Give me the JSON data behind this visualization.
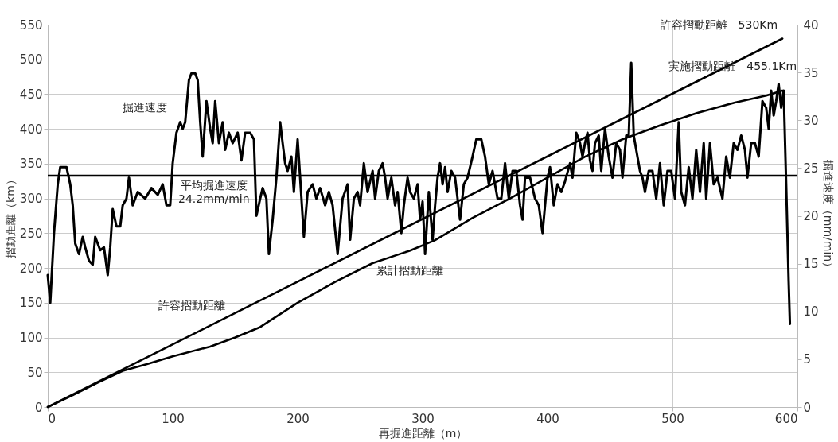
{
  "chart_data": {
    "type": "line",
    "xlabel": "再掘進距離（m）",
    "ylabel": "摺動距離（km）",
    "y2label": "掘進速度（mm/min）",
    "xlim": [
      0,
      600
    ],
    "xticks": [
      0,
      100,
      200,
      300,
      400,
      500,
      600
    ],
    "ylim": [
      0,
      550
    ],
    "yticks": [
      0,
      50,
      100,
      150,
      200,
      250,
      300,
      350,
      400,
      450,
      500,
      550
    ],
    "y2lim": [
      0,
      40
    ],
    "y2ticks": [
      0,
      5,
      10,
      15,
      20,
      25,
      30,
      35,
      40
    ],
    "grid": true,
    "line_style": "solid",
    "marker": "none",
    "series": [
      {
        "name": "掘進速度",
        "color": "#000000",
        "axis": "y2",
        "x": [
          0,
          2,
          5,
          8,
          10,
          15,
          18,
          20,
          22,
          25,
          28,
          30,
          33,
          36,
          38,
          42,
          45,
          48,
          50,
          52,
          55,
          58,
          60,
          63,
          65,
          68,
          72,
          78,
          83,
          88,
          92,
          95,
          98,
          100,
          103,
          106,
          108,
          110,
          113,
          115,
          118,
          120,
          122,
          124,
          127,
          130,
          132,
          134,
          137,
          140,
          142,
          145,
          148,
          152,
          155,
          158,
          162,
          165,
          167,
          170,
          172,
          175,
          177,
          180,
          183,
          186,
          188,
          190,
          192,
          195,
          197,
          200,
          202,
          205,
          208,
          212,
          215,
          218,
          222,
          225,
          228,
          232,
          236,
          240,
          242,
          245,
          248,
          250,
          253,
          256,
          260,
          262,
          265,
          268,
          270,
          272,
          275,
          278,
          280,
          283,
          285,
          288,
          290,
          293,
          296,
          298,
          300,
          302,
          305,
          308,
          310,
          312,
          314,
          316,
          318,
          320,
          323,
          326,
          328,
          330,
          333,
          336,
          340,
          343,
          347,
          350,
          353,
          356,
          360,
          363,
          366,
          369,
          372,
          375,
          378,
          380,
          382,
          386,
          390,
          393,
          396,
          400,
          402,
          405,
          408,
          411,
          414,
          418,
          420,
          423,
          426,
          428,
          430,
          432,
          434,
          436,
          438,
          441,
          443,
          446,
          449,
          452,
          455,
          458,
          460,
          463,
          465,
          467,
          469,
          471,
          474,
          476,
          478,
          481,
          484,
          487,
          490,
          493,
          496,
          499,
          502,
          505,
          507,
          510,
          513,
          516,
          519,
          522,
          525,
          527,
          530,
          533,
          536,
          540,
          543,
          546,
          549,
          552,
          555,
          558,
          560,
          563,
          566,
          569,
          572,
          575,
          577,
          579,
          581,
          583,
          585,
          587,
          589,
          591,
          593,
          594
        ],
        "values": [
          13.8,
          10.9,
          18.2,
          23.3,
          25.1,
          25.1,
          23.3,
          21.1,
          17.1,
          16.0,
          17.8,
          16.7,
          15.3,
          14.9,
          17.8,
          16.4,
          16.7,
          13.8,
          16.7,
          20.7,
          18.9,
          18.9,
          21.1,
          21.8,
          24.0,
          21.1,
          22.5,
          21.8,
          22.9,
          22.2,
          23.3,
          21.1,
          21.1,
          25.5,
          28.7,
          29.8,
          29.1,
          29.8,
          34.2,
          34.9,
          34.9,
          34.2,
          29.8,
          26.2,
          32.0,
          29.1,
          27.6,
          32.0,
          27.6,
          29.8,
          26.9,
          28.7,
          27.6,
          28.7,
          25.8,
          28.7,
          28.7,
          28.0,
          20.0,
          21.8,
          22.9,
          21.8,
          16.0,
          19.6,
          24.0,
          29.8,
          27.6,
          25.5,
          24.7,
          26.2,
          22.5,
          28.0,
          24.0,
          17.8,
          22.5,
          23.3,
          21.8,
          22.9,
          21.1,
          22.5,
          21.1,
          16.0,
          21.8,
          23.3,
          17.5,
          21.8,
          22.5,
          21.1,
          25.5,
          22.5,
          24.7,
          21.8,
          24.7,
          25.5,
          24.0,
          21.8,
          24.0,
          21.1,
          22.5,
          18.2,
          21.1,
          24.0,
          22.5,
          21.8,
          23.3,
          19.6,
          21.5,
          16.0,
          22.5,
          17.5,
          21.1,
          24.0,
          25.5,
          23.3,
          25.1,
          22.5,
          24.7,
          24.0,
          21.8,
          19.6,
          23.3,
          24.0,
          26.2,
          28.0,
          28.0,
          26.2,
          23.3,
          24.7,
          21.8,
          21.8,
          25.5,
          21.8,
          24.7,
          24.7,
          21.1,
          19.6,
          24.0,
          24.0,
          21.8,
          21.1,
          18.2,
          24.0,
          25.1,
          21.1,
          23.3,
          22.5,
          23.6,
          25.5,
          24.0,
          28.7,
          27.6,
          26.2,
          27.6,
          28.7,
          25.8,
          24.7,
          27.6,
          28.4,
          24.7,
          29.1,
          26.2,
          24.0,
          27.6,
          26.9,
          24.0,
          28.4,
          28.4,
          36.0,
          28.4,
          26.9,
          24.7,
          24.0,
          22.5,
          24.7,
          24.7,
          21.8,
          25.5,
          21.1,
          24.7,
          24.7,
          21.8,
          29.8,
          22.5,
          21.1,
          25.1,
          21.8,
          26.9,
          22.5,
          27.6,
          21.8,
          27.6,
          23.3,
          24.0,
          21.8,
          26.2,
          24.0,
          27.6,
          26.9,
          28.4,
          26.9,
          24.0,
          27.6,
          27.6,
          26.2,
          32.0,
          31.3,
          29.1,
          33.1,
          30.5,
          32.0,
          33.8,
          31.3,
          33.1,
          23.3,
          13.1,
          8.7
        ]
      },
      {
        "name": "許容摺動距離",
        "color": "#000000",
        "x": [
          0,
          588
        ],
        "values": [
          0,
          530
        ]
      },
      {
        "name": "累計摺動距離",
        "color": "#000000",
        "x": [
          0,
          20,
          40,
          60,
          80,
          100,
          130,
          150,
          170,
          200,
          230,
          260,
          290,
          310,
          340,
          370,
          400,
          430,
          460,
          490,
          520,
          550,
          575,
          588
        ],
        "values": [
          0,
          17,
          35,
          52,
          62,
          73,
          87,
          100,
          115,
          150,
          180,
          207,
          225,
          240,
          272,
          300,
          330,
          360,
          385,
          405,
          423,
          438,
          448,
          455.1
        ]
      }
    ],
    "ref_lines": [
      {
        "axis": "y2",
        "value": 24.2,
        "label": "平均掘進速度　24.2mm/min",
        "color": "#000000"
      }
    ],
    "annotations": [
      {
        "text": "許容摺動距離　530Km",
        "x": 588,
        "y": 530
      },
      {
        "text": "実施摺動距離　455.1Km",
        "x": 588,
        "y": 455.1
      }
    ]
  }
}
